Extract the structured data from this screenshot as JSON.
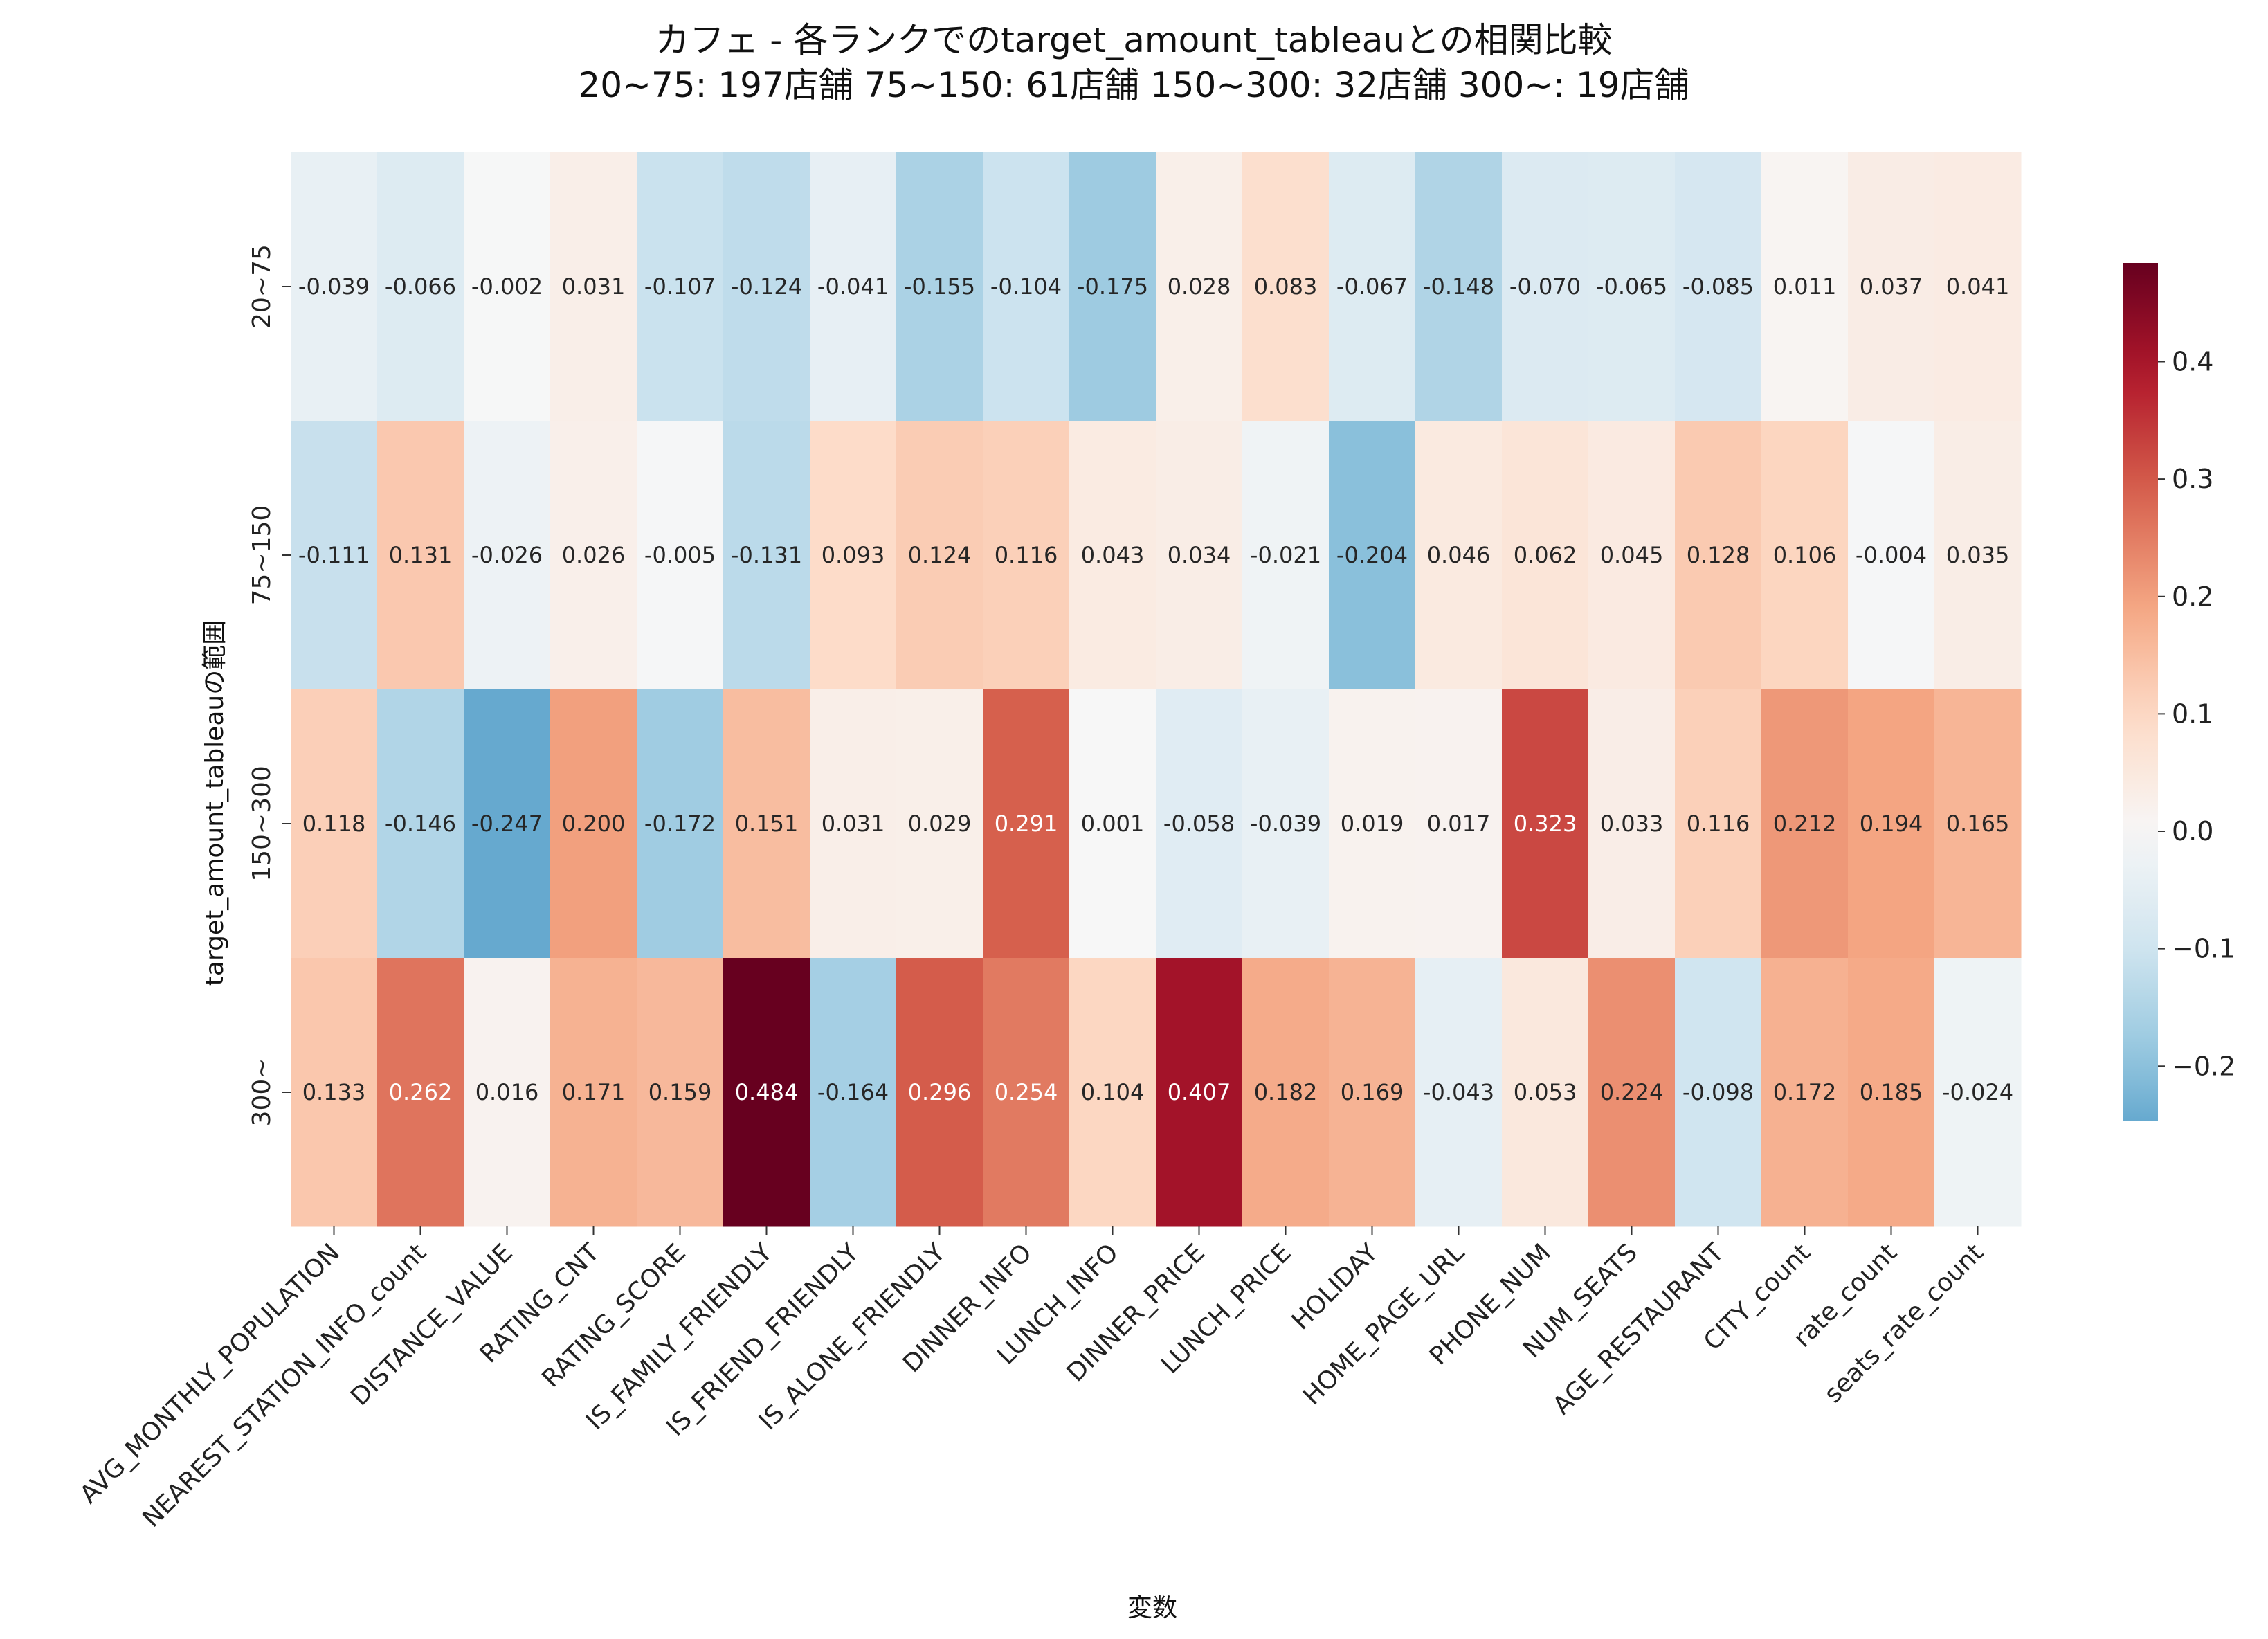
{
  "chart_data": {
    "type": "heatmap",
    "title": "カフェ - 各ランクでのtarget_amount_tableauとの相関比較",
    "subtitle": "20~75: 197店舗  75~150: 61店舗  150~300: 32店舗  300~: 19店舗",
    "xlabel": "変数",
    "ylabel": "target_amount_tableauの範囲",
    "rows": [
      "20~75",
      "75~150",
      "150~300",
      "300~"
    ],
    "columns": [
      "AVG_MONTHLY_POPULATION",
      "NEAREST_STATION_INFO_count",
      "DISTANCE_VALUE",
      "RATING_CNT",
      "RATING_SCORE",
      "IS_FAMILY_FRIENDLY",
      "IS_FRIEND_FRIENDLY",
      "IS_ALONE_FRIENDLY",
      "DINNER_INFO",
      "LUNCH_INFO",
      "DINNER_PRICE",
      "LUNCH_PRICE",
      "HOLIDAY",
      "HOME_PAGE_URL",
      "PHONE_NUM",
      "NUM_SEATS",
      "AGE_RESTAURANT",
      "CITY_count",
      "rate_count",
      "seats_rate_count"
    ],
    "values": [
      [
        -0.039,
        -0.066,
        -0.002,
        0.031,
        -0.107,
        -0.124,
        -0.041,
        -0.155,
        -0.104,
        -0.175,
        0.028,
        0.083,
        -0.067,
        -0.148,
        -0.07,
        -0.065,
        -0.085,
        0.011,
        0.037,
        0.041
      ],
      [
        -0.111,
        0.131,
        -0.026,
        0.026,
        -0.005,
        -0.131,
        0.093,
        0.124,
        0.116,
        0.043,
        0.034,
        -0.021,
        -0.204,
        0.046,
        0.062,
        0.045,
        0.128,
        0.106,
        -0.004,
        0.035
      ],
      [
        0.118,
        -0.146,
        -0.247,
        0.2,
        -0.172,
        0.151,
        0.031,
        0.029,
        0.291,
        0.001,
        -0.058,
        -0.039,
        0.019,
        0.017,
        0.323,
        0.033,
        0.116,
        0.212,
        0.194,
        0.165
      ],
      [
        0.133,
        0.262,
        0.016,
        0.171,
        0.159,
        0.484,
        -0.164,
        0.296,
        0.254,
        0.104,
        0.407,
        0.182,
        0.169,
        -0.043,
        0.053,
        0.224,
        -0.098,
        0.172,
        0.185,
        -0.024
      ]
    ],
    "colormap": "RdBu_r",
    "vmin": -0.247,
    "vmax": 0.484,
    "colorbar_ticks": [
      -0.2,
      -0.1,
      0.0,
      0.1,
      0.2,
      0.3,
      0.4
    ],
    "colorbar_tick_labels": [
      "−0.2",
      "−0.1",
      "0.0",
      "0.1",
      "0.2",
      "0.3",
      "0.4"
    ],
    "annotation_format": "3 decimals",
    "grid": false
  }
}
